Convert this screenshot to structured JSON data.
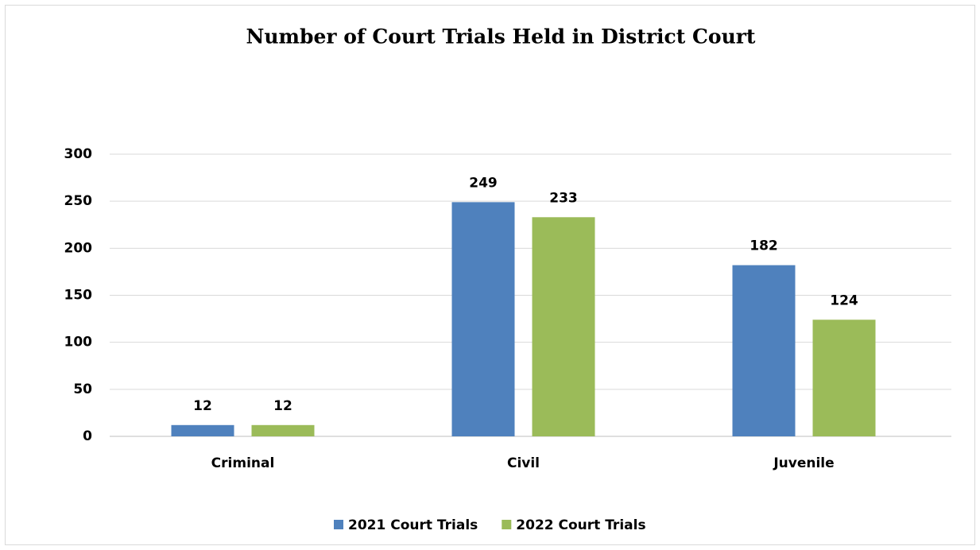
{
  "chart_data": {
    "type": "bar",
    "title": "Number of Court Trials Held in District Court",
    "categories": [
      "Criminal",
      "Civil",
      "Juvenile"
    ],
    "series": [
      {
        "name": "2021 Court Trials",
        "color": "#4f81bd",
        "values": [
          12,
          249,
          182
        ]
      },
      {
        "name": "2022 Court Trials",
        "color": "#9bbb59",
        "values": [
          12,
          233,
          124
        ]
      }
    ],
    "ylim": [
      0,
      300
    ],
    "yticks": [
      0,
      50,
      100,
      150,
      200,
      250,
      300
    ],
    "grid": true,
    "legend": "bottom"
  }
}
